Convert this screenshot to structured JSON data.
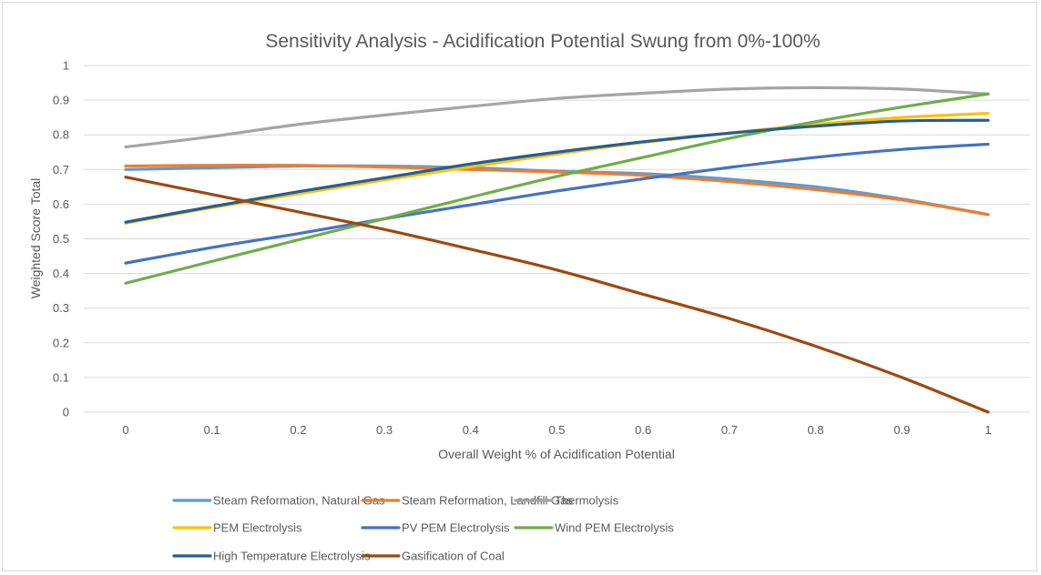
{
  "chart_data": {
    "type": "line",
    "title": "Sensitivity Analysis - Acidification Potential Swung from 0%-100%",
    "xlabel": "Overall Weight % of Acidification Potential",
    "ylabel": "Weighted Score Total",
    "x": [
      0,
      0.1,
      0.2,
      0.3,
      0.4,
      0.5,
      0.6,
      0.7,
      0.8,
      0.9,
      1
    ],
    "x_tick_labels": [
      "0",
      "0.1",
      "0.2",
      "0.3",
      "0.4",
      "0.5",
      "0.6",
      "0.7",
      "0.8",
      "0.9",
      "1"
    ],
    "ylim": [
      0,
      1
    ],
    "y_tick_labels": [
      "0",
      "0.1",
      "0.2",
      "0.3",
      "0.4",
      "0.5",
      "0.6",
      "0.7",
      "0.8",
      "0.9",
      "1"
    ],
    "y_ticks": [
      0,
      0.1,
      0.2,
      0.3,
      0.4,
      0.5,
      0.6,
      0.7,
      0.8,
      0.9,
      1
    ],
    "grid": "horizontal",
    "legend_position": "bottom",
    "series": [
      {
        "name": "Steam Reformation, Natural Gas",
        "color": "#5B9BD5",
        "values": [
          0.7,
          0.705,
          0.71,
          0.71,
          0.705,
          0.695,
          0.688,
          0.672,
          0.65,
          0.615,
          0.57
        ]
      },
      {
        "name": "Steam Reformation, Landfill Gas",
        "color": "#ED7D31",
        "values": [
          0.71,
          0.712,
          0.712,
          0.707,
          0.7,
          0.693,
          0.683,
          0.665,
          0.642,
          0.612,
          0.57
        ]
      },
      {
        "name": "Thermolysis",
        "color": "#A5A5A5",
        "values": [
          0.765,
          0.795,
          0.83,
          0.857,
          0.882,
          0.905,
          0.92,
          0.932,
          0.936,
          0.932,
          0.918
        ]
      },
      {
        "name": "PEM Electrolysis",
        "color": "#FFC000",
        "values": [
          0.545,
          0.59,
          0.63,
          0.67,
          0.708,
          0.745,
          0.778,
          0.805,
          0.83,
          0.85,
          0.862
        ]
      },
      {
        "name": "PV PEM Electrolysis",
        "color": "#4472C4",
        "values": [
          0.43,
          0.475,
          0.515,
          0.558,
          0.598,
          0.638,
          0.673,
          0.706,
          0.735,
          0.758,
          0.773
        ]
      },
      {
        "name": "Wind PEM Electrolysis",
        "color": "#70AD47",
        "values": [
          0.372,
          0.435,
          0.497,
          0.558,
          0.62,
          0.68,
          0.735,
          0.79,
          0.838,
          0.88,
          0.918
        ]
      },
      {
        "name": "High Temperature Electrolysis",
        "color": "#255E91",
        "values": [
          0.548,
          0.593,
          0.636,
          0.676,
          0.716,
          0.75,
          0.78,
          0.805,
          0.825,
          0.84,
          0.842
        ]
      },
      {
        "name": "Gasification of Coal",
        "color": "#9E480E",
        "values": [
          0.678,
          0.628,
          0.578,
          0.527,
          0.47,
          0.41,
          0.34,
          0.27,
          0.19,
          0.1,
          0.0
        ]
      }
    ]
  }
}
